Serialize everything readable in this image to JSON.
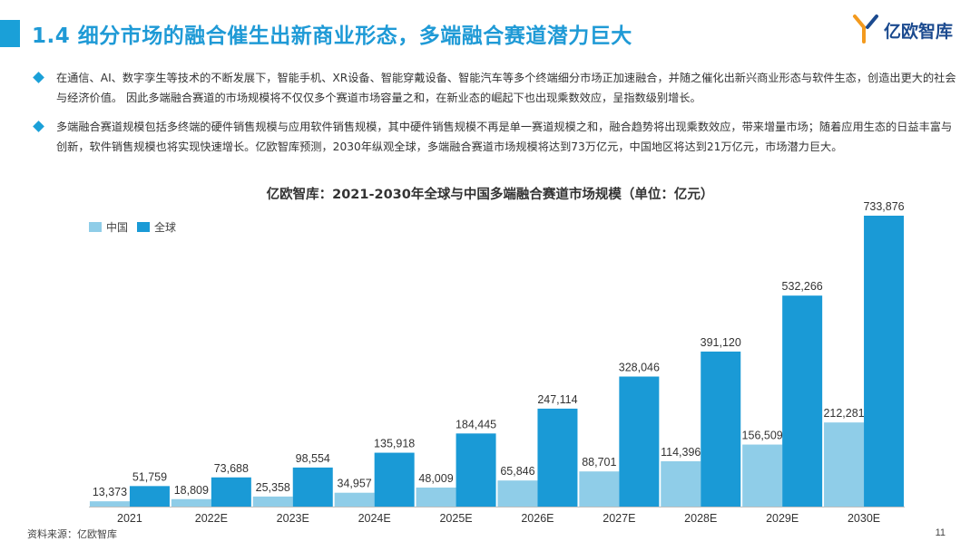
{
  "header": {
    "title": "1.4 细分市场的融合催生出新商业形态，多端融合赛道潜力巨大",
    "logo_text": "亿欧智库"
  },
  "bullets": [
    "在通信、AI、数字孪生等技术的不断发展下，智能手机、XR设备、智能穿戴设备、智能汽车等多个终端细分市场正加速融合，并随之催化出新兴商业形态与软件生态，创造出更大的社会与经济价值。 因此多端融合赛道的市场规模将不仅仅多个赛道市场容量之和，在新业态的崛起下也出现乘数效应，呈指数级别增长。",
    "多端融合赛道规模包括多终端的硬件销售规模与应用软件销售规模，其中硬件销售规模不再是单一赛道规模之和，融合趋势将出现乘数效应，带来增量市场；随着应用生态的日益丰富与创新，软件销售规模也将实现快速增长。亿欧智库预测，2030年纵观全球，多端融合赛道市场规模将达到73万亿元，中国地区将达到21万亿元，市场潜力巨大。"
  ],
  "chart_data": {
    "type": "bar",
    "title": "亿欧智库：2021-2030年全球与中国多端融合赛道市场规模（单位：亿元）",
    "categories": [
      "2021",
      "2022E",
      "2023E",
      "2024E",
      "2025E",
      "2026E",
      "2027E",
      "2028E",
      "2029E",
      "2030E"
    ],
    "series": [
      {
        "name": "中国",
        "color": "#8fcde8",
        "values": [
          13373,
          18809,
          25358,
          34957,
          48009,
          65846,
          88701,
          114396,
          156509,
          212281
        ]
      },
      {
        "name": "全球",
        "color": "#1a9ad6",
        "values": [
          51759,
          73688,
          98554,
          135918,
          184445,
          247114,
          328046,
          391120,
          532266,
          733876
        ]
      }
    ],
    "data_labels": {
      "中国": [
        "13,373",
        "18,809",
        "25,358",
        "34,957",
        "48,009",
        "65,846",
        "88,701",
        "114,396",
        "156,509",
        "212,281"
      ],
      "全球": [
        "51,759",
        "73,688",
        "98,554",
        "135,918",
        "184,445",
        "247,114",
        "328,046",
        "391,120",
        "532,266",
        "733,876"
      ]
    },
    "legend_position": "top-left",
    "grid": false
  },
  "footer": {
    "source": "资料来源：亿欧智库",
    "page": "11"
  }
}
